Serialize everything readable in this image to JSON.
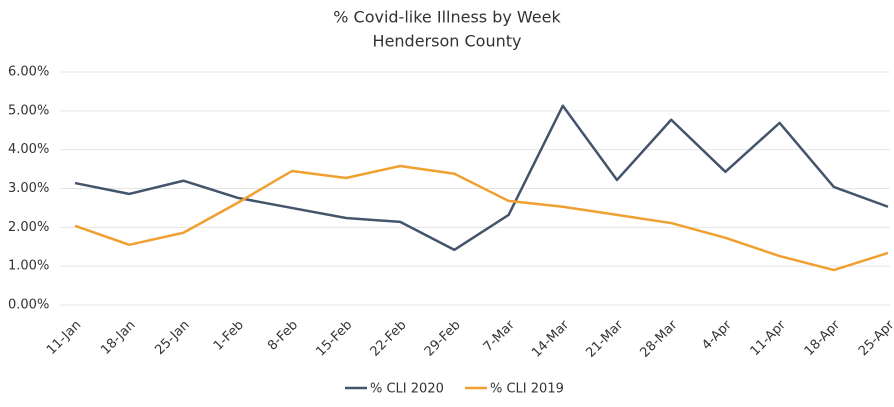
{
  "chart_data": {
    "type": "line",
    "title": "% Covid-like Illness by Week",
    "subtitle": "Henderson County",
    "categories": [
      "11-Jan",
      "18-Jan",
      "25-Jan",
      "1-Feb",
      "8-Feb",
      "15-Feb",
      "22-Feb",
      "29-Feb",
      "7-Mar",
      "14-Mar",
      "21-Mar",
      "28-Mar",
      "4-Apr",
      "11-Apr",
      "18-Apr",
      "25-Apr"
    ],
    "series": [
      {
        "name": "% CLI 2020",
        "color": "#44546a",
        "values": [
          3.14,
          2.86,
          3.2,
          2.76,
          2.5,
          2.24,
          2.14,
          1.42,
          2.32,
          5.13,
          3.22,
          4.77,
          3.43,
          4.69,
          3.04,
          2.53
        ]
      },
      {
        "name": "% CLI 2019",
        "color": "#f0a030",
        "values": [
          2.04,
          1.55,
          1.86,
          2.63,
          3.45,
          3.27,
          3.58,
          3.38,
          2.68,
          2.53,
          2.32,
          2.11,
          1.73,
          1.26,
          0.9,
          1.34
        ]
      }
    ],
    "ylim": [
      0,
      6
    ],
    "yticks": [
      {
        "value": 0,
        "label": "0.00%"
      },
      {
        "value": 1,
        "label": "1.00%"
      },
      {
        "value": 2,
        "label": "2.00%"
      },
      {
        "value": 3,
        "label": "3.00%"
      },
      {
        "value": 4,
        "label": "4.00%"
      },
      {
        "value": 5,
        "label": "5.00%"
      },
      {
        "value": 6,
        "label": "6.00%"
      }
    ],
    "grid": true,
    "legend": "bottom"
  }
}
